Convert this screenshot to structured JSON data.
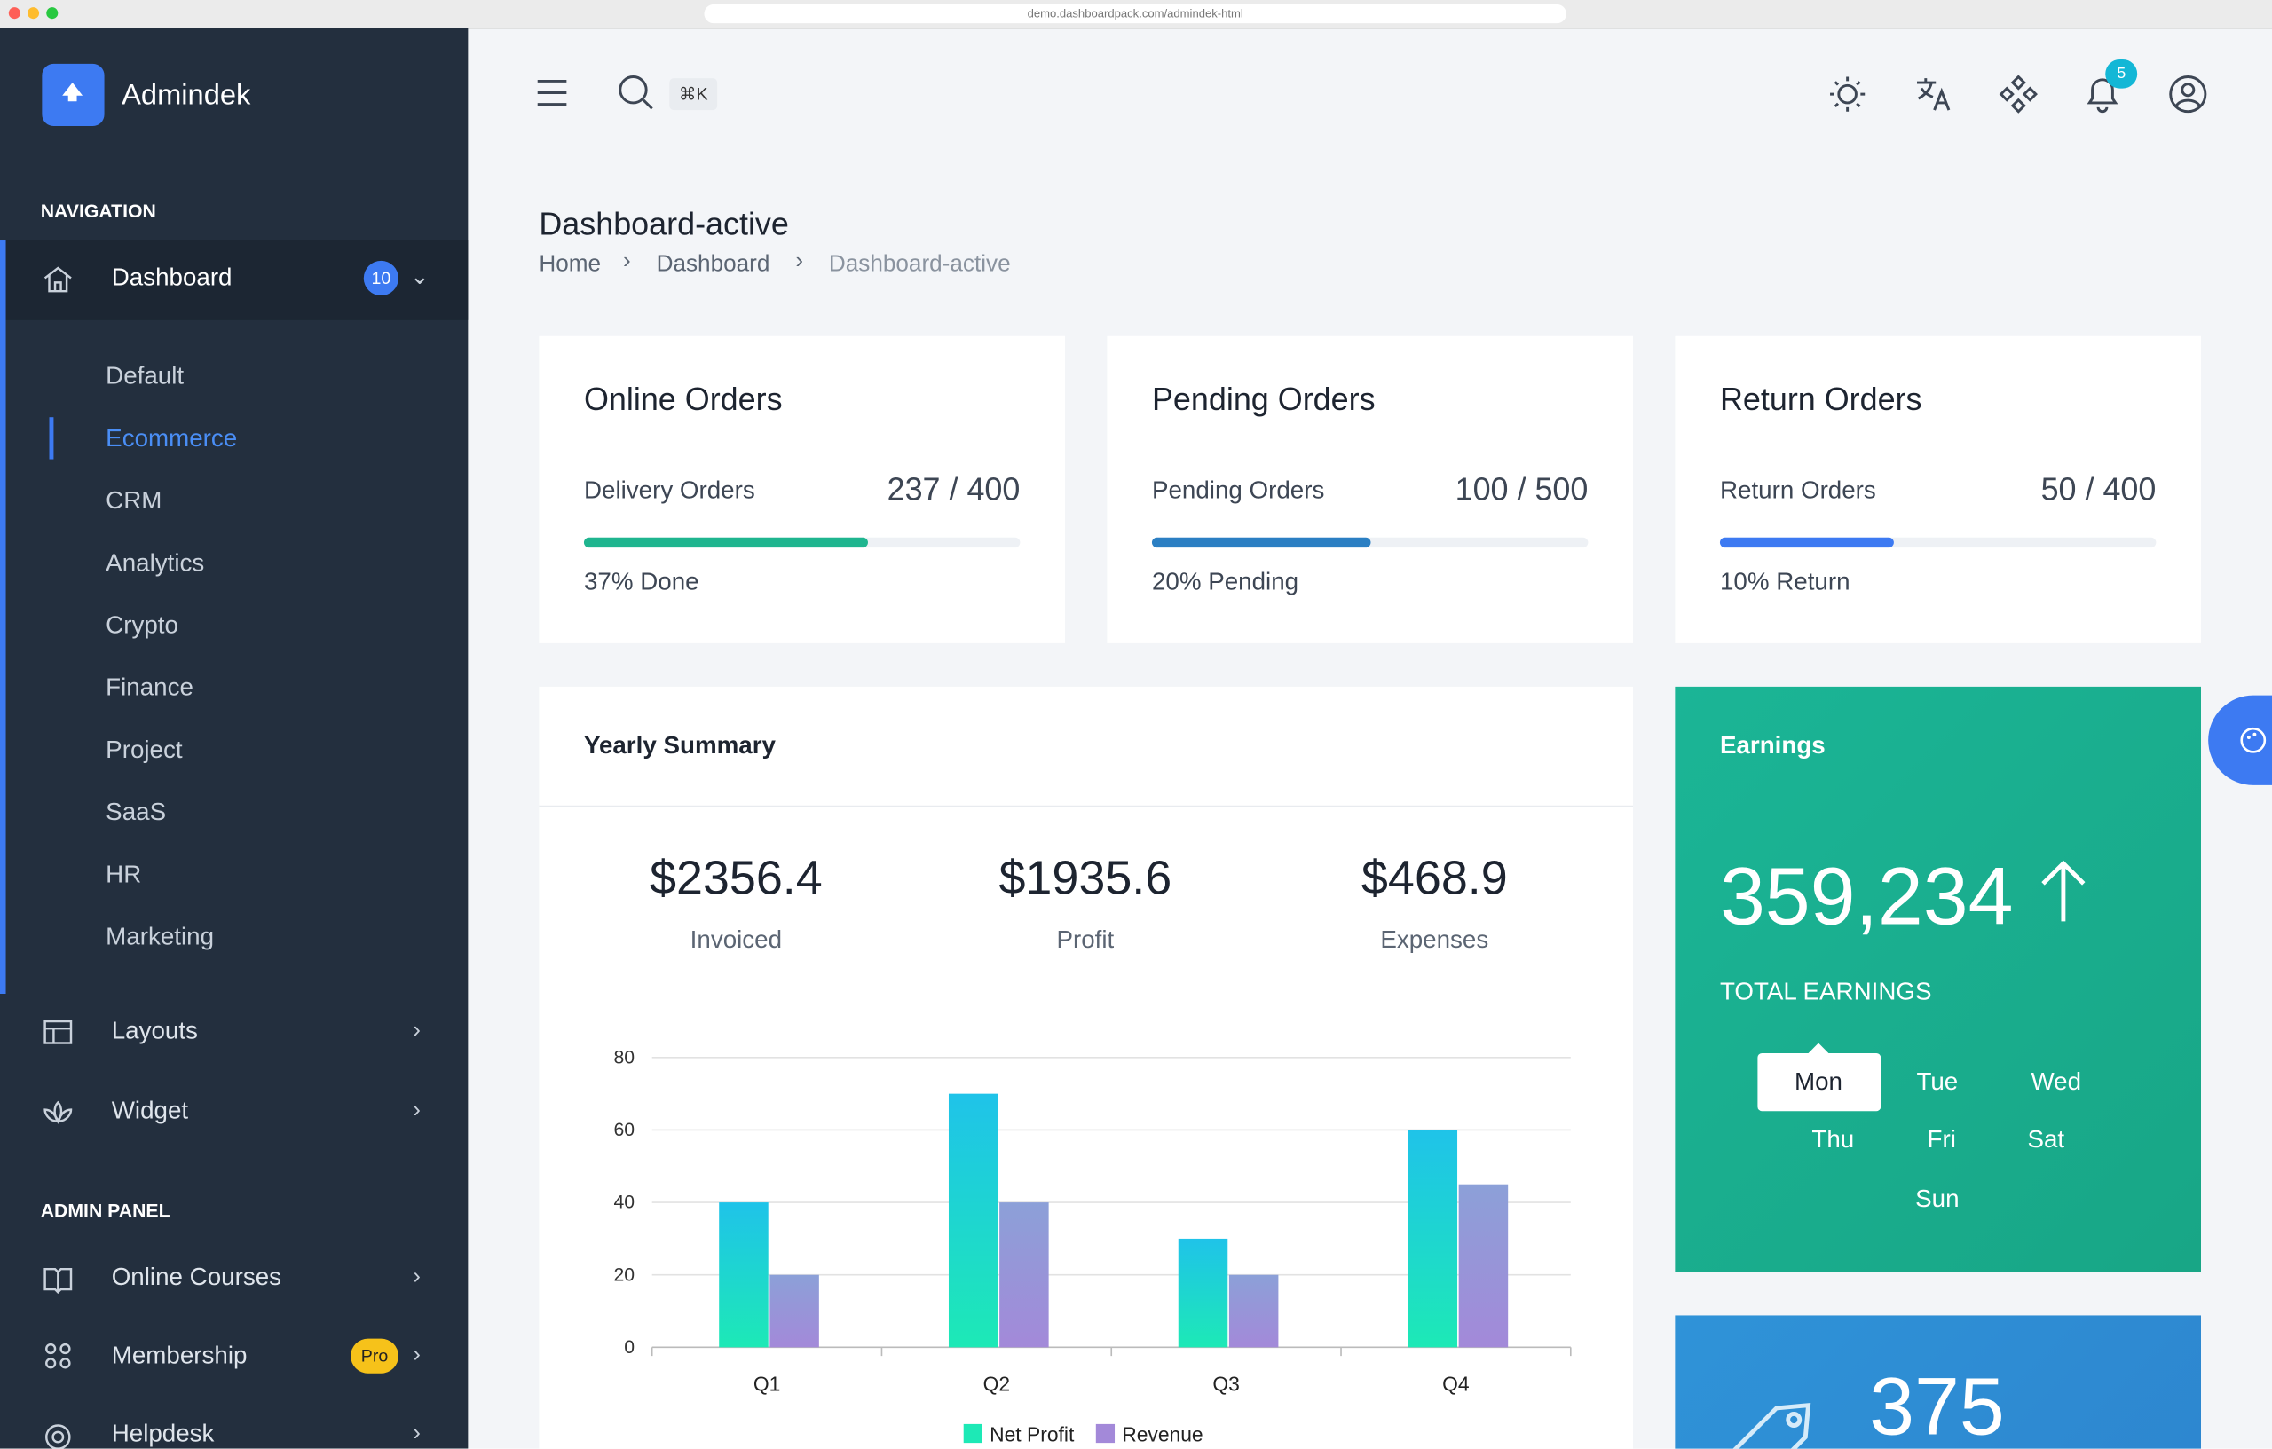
{
  "browser": {
    "url": "demo.dashboardpack.com/admindek-html"
  },
  "sidebar": {
    "brand": "Admindek",
    "nav_heading": "NAVIGATION",
    "dashboard": {
      "label": "Dashboard",
      "badge": "10"
    },
    "submenu": [
      "Default",
      "Ecommerce",
      "CRM",
      "Analytics",
      "Crypto",
      "Finance",
      "Project",
      "SaaS",
      "HR",
      "Marketing"
    ],
    "items": [
      {
        "label": "Layouts"
      },
      {
        "label": "Widget"
      }
    ],
    "admin_heading": "ADMIN PANEL",
    "admin_items": [
      {
        "label": "Online Courses"
      },
      {
        "label": "Membership",
        "badge": "Pro"
      },
      {
        "label": "Helpdesk"
      }
    ]
  },
  "header": {
    "shortcut": "⌘K",
    "notifications": "5"
  },
  "page": {
    "title": "Dashboard-active",
    "breadcrumbs": [
      "Home",
      "Dashboard",
      "Dashboard-active"
    ]
  },
  "order_cards": [
    {
      "title": "Online Orders",
      "metric_label": "Delivery Orders",
      "metric_value": "237 / 400",
      "progress": 65,
      "color": "#1fb58f",
      "status": "37% Done"
    },
    {
      "title": "Pending Orders",
      "metric_label": "Pending Orders",
      "metric_value": "100 / 500",
      "progress": 50,
      "color": "#2b7fc3",
      "status": "20% Pending"
    },
    {
      "title": "Return Orders",
      "metric_label": "Return Orders",
      "metric_value": "50 / 400",
      "progress": 40,
      "color": "#3d7af2",
      "status": "10% Return"
    }
  ],
  "yearly_summary": {
    "title": "Yearly Summary",
    "stats": [
      {
        "value": "$2356.4",
        "label": "Invoiced"
      },
      {
        "value": "$1935.6",
        "label": "Profit"
      },
      {
        "value": "$468.9",
        "label": "Expenses"
      }
    ]
  },
  "chart_data": {
    "type": "bar",
    "categories": [
      "Q1",
      "Q2",
      "Q3",
      "Q4"
    ],
    "series": [
      {
        "name": "Net Profit",
        "color": "#1de9b6",
        "values": [
          40,
          70,
          30,
          60
        ]
      },
      {
        "name": "Revenue",
        "color": "#a389d9",
        "values": [
          20,
          40,
          20,
          45
        ]
      }
    ],
    "ylim": [
      0,
      80
    ],
    "yticks": [
      0,
      20,
      40,
      60,
      80
    ],
    "grid": true,
    "legend": "bottom"
  },
  "earnings": {
    "title": "Earnings",
    "value": "359,234",
    "label": "TOTAL EARNINGS",
    "days": [
      "Mon",
      "Tue",
      "Wed",
      "Thu",
      "Fri",
      "Sat",
      "Sun"
    ],
    "selected_day": "Mon"
  },
  "bottom_card": {
    "value": "375"
  }
}
